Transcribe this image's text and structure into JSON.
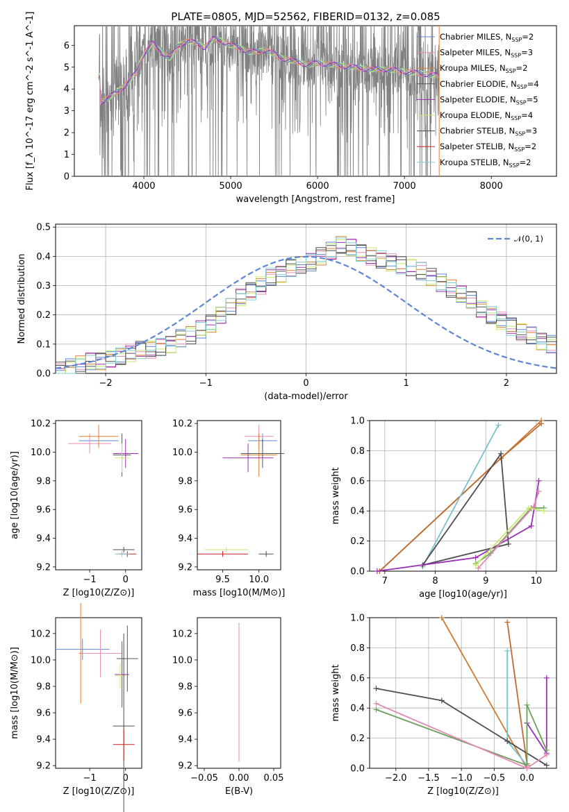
{
  "title": "PLATE=0805, MJD=52562, FIBERID=0132, z=0.085",
  "colors": [
    "#5b86d6",
    "#e88bb7",
    "#e07f2c",
    "#555555",
    "#9a2bb0",
    "#c7e86a",
    "#4d4d4d",
    "#cc2222",
    "#7ccfd3"
  ],
  "chart_data": [
    {
      "id": "spectrum",
      "type": "line",
      "xlabel": "wavelength [Angstrom, rest frame]",
      "ylabel": "Flux [f_λ 10^-17 erg cm^-2 s^-1 A^-1]",
      "xlim": [
        3200,
        8750
      ],
      "ylim": [
        0,
        6.9
      ],
      "xticks": [
        "4000",
        "5000",
        "6000",
        "7000",
        "8000"
      ],
      "yticks": [
        "0",
        "1",
        "2",
        "3",
        "4",
        "5",
        "6"
      ],
      "legend_location": "upper right",
      "legend": [
        {
          "name": "Chabrier MILES, N",
          "sub": "SSP",
          "suffix": "=2"
        },
        {
          "name": "Salpeter MILES, N",
          "sub": "SSP",
          "suffix": "=3"
        },
        {
          "name": "Kroupa MILES, N",
          "sub": "SSP",
          "suffix": "=2"
        },
        {
          "name": "Chabrier ELODIE, N",
          "sub": "SSP",
          "suffix": "=4"
        },
        {
          "name": "Salpeter ELODIE, N",
          "sub": "SSP",
          "suffix": "=5"
        },
        {
          "name": "Kroupa ELODIE, N",
          "sub": "SSP",
          "suffix": "=4"
        },
        {
          "name": "Chabrier STELIB, N",
          "sub": "SSP",
          "suffix": "=3"
        },
        {
          "name": "Salpeter STELIB, N",
          "sub": "SSP",
          "suffix": "=2"
        },
        {
          "name": "Kroupa STELIB, N",
          "sub": "SSP",
          "suffix": "=2"
        }
      ],
      "model_continuum": {
        "x": [
          3500,
          3600,
          3700,
          3800,
          3900,
          4000,
          4100,
          4200,
          4300,
          4400,
          4500,
          4600,
          4700,
          4800,
          4900,
          5000,
          5100,
          5200,
          5300,
          5400,
          5500,
          5600,
          5700,
          5800,
          5900,
          6000,
          6200,
          6400,
          6600,
          6800,
          7000,
          7200,
          7400
        ],
        "y": [
          3.4,
          3.6,
          3.9,
          4.2,
          4.7,
          5.6,
          6.1,
          5.7,
          5.4,
          6.0,
          6.2,
          6.1,
          5.9,
          6.3,
          6.2,
          6.0,
          5.9,
          5.7,
          5.7,
          5.8,
          5.6,
          5.4,
          5.3,
          5.2,
          5.1,
          5.2,
          5.1,
          5.0,
          4.9,
          4.9,
          4.8,
          4.7,
          4.6
        ]
      }
    },
    {
      "id": "residuals",
      "type": "histogram",
      "xlabel": "(data-model)/error",
      "ylabel": "Normed distribution",
      "xlim": [
        -2.5,
        2.5
      ],
      "ylim": [
        0,
        0.51
      ],
      "xticks": [
        "−2",
        "−1",
        "0",
        "1",
        "2"
      ],
      "yticks": [
        "0.0",
        "0.1",
        "0.2",
        "0.3",
        "0.4",
        "0.5"
      ],
      "reference_curve": "𝒩(0, 1)",
      "bin_width": 0.1,
      "values": [
        0.01,
        0.02,
        0.03,
        0.04,
        0.04,
        0.05,
        0.06,
        0.07,
        0.08,
        0.08,
        0.09,
        0.1,
        0.12,
        0.13,
        0.15,
        0.17,
        0.2,
        0.23,
        0.26,
        0.28,
        0.3,
        0.33,
        0.34,
        0.36,
        0.37,
        0.38,
        0.4,
        0.42,
        0.44,
        0.43,
        0.41,
        0.4,
        0.39,
        0.38,
        0.37,
        0.36,
        0.35,
        0.33,
        0.31,
        0.29,
        0.27,
        0.25,
        0.22,
        0.2,
        0.18,
        0.16,
        0.14,
        0.13,
        0.11,
        0.1
      ]
    },
    {
      "id": "age_vs_Z",
      "type": "errorbar",
      "xlabel": "Z [log10(Z/Z⊙)]",
      "ylabel": "age [log10(age/yr)]",
      "xlim": [
        -1.95,
        0.45
      ],
      "ylim": [
        9.18,
        10.22
      ],
      "xticks": [
        "−1",
        "0"
      ],
      "yticks": [
        "9.2",
        "9.4",
        "9.6",
        "9.8",
        "10.0",
        "10.2"
      ],
      "points": [
        {
          "x": -0.75,
          "y": 10.08,
          "xerr": 0.55,
          "yerr": 0.05
        },
        {
          "x": -1.0,
          "y": 10.06,
          "xerr": 0.6,
          "yerr": 0.07
        },
        {
          "x": -0.75,
          "y": 10.11,
          "xerr": 0.55,
          "yerr": 0.08
        },
        {
          "x": -0.1,
          "y": 9.98,
          "xerr": 0.25,
          "yerr": 0.15
        },
        {
          "x": 0.0,
          "y": 9.99,
          "xerr": 0.35,
          "yerr": 0.1
        },
        {
          "x": -0.1,
          "y": 9.96,
          "xerr": 0.2,
          "yerr": 0.1
        },
        {
          "x": -0.05,
          "y": 9.32,
          "xerr": 0.3,
          "yerr": 0.02
        },
        {
          "x": 0.05,
          "y": 9.29,
          "xerr": 0.25,
          "yerr": 0.02
        },
        {
          "x": -0.1,
          "y": 9.29,
          "xerr": 0.2,
          "yerr": 0.02
        }
      ]
    },
    {
      "id": "age_vs_mass",
      "type": "errorbar",
      "xlabel": "mass [log10(M/M⊙)]",
      "ylabel": "",
      "xlim": [
        9.15,
        10.3
      ],
      "ylim": [
        9.18,
        10.22
      ],
      "xticks": [
        "9.5",
        "10.0"
      ],
      "yticks": [
        "9.2",
        "9.4",
        "9.6",
        "9.8",
        "10.0",
        "10.2"
      ],
      "points": [
        {
          "x": 10.05,
          "y": 10.08,
          "xerr": 0.2,
          "yerr": 0.05
        },
        {
          "x": 10.0,
          "y": 10.11,
          "xerr": 0.2,
          "yerr": 0.08
        },
        {
          "x": 10.0,
          "y": 9.98,
          "xerr": 0.25,
          "yerr": 0.15
        },
        {
          "x": 10.05,
          "y": 9.99,
          "xerr": 0.3,
          "yerr": 0.1
        },
        {
          "x": 9.85,
          "y": 9.96,
          "xerr": 0.35,
          "yerr": 0.1
        },
        {
          "x": 9.55,
          "y": 9.32,
          "xerr": 0.3,
          "yerr": 0.02
        },
        {
          "x": 10.1,
          "y": 9.29,
          "xerr": 0.1,
          "yerr": 0.02
        },
        {
          "x": 9.5,
          "y": 9.29,
          "xerr": 0.35,
          "yerr": 0.02
        }
      ]
    },
    {
      "id": "weight_vs_age",
      "type": "line",
      "xlabel": "age [log10(age/yr)]",
      "ylabel": "mass weight",
      "xlim": [
        6.7,
        10.4
      ],
      "ylim": [
        0,
        1.0
      ],
      "xticks": [
        "7",
        "8",
        "9",
        "10"
      ],
      "yticks": [
        "0.0",
        "0.2",
        "0.4",
        "0.6",
        "0.8",
        "1.0"
      ],
      "series": [
        {
          "x": [
            6.9,
            10.1
          ],
          "y": [
            0.0,
            1.0
          ]
        },
        {
          "x": [
            6.9,
            9.3,
            10.1
          ],
          "y": [
            0.0,
            0.75,
            0.98
          ]
        },
        {
          "x": [
            7.75,
            9.25
          ],
          "y": [
            0.03,
            0.97
          ]
        },
        {
          "x": [
            7.75,
            9.3,
            9.45,
            7.75
          ],
          "y": [
            0.04,
            0.78,
            0.18,
            0.04
          ]
        },
        {
          "x": [
            6.85,
            8.8,
            9.9,
            10.05
          ],
          "y": [
            0.0,
            0.09,
            0.3,
            0.6
          ]
        },
        {
          "x": [
            8.8,
            9.1,
            9.9,
            10.15
          ],
          "y": [
            0.05,
            0.12,
            0.42,
            0.42
          ]
        },
        {
          "x": [
            8.85,
            9.95,
            10.05
          ],
          "y": [
            0.02,
            0.43,
            0.53
          ]
        },
        {
          "x": [
            8.8,
            9.85,
            10.15
          ],
          "y": [
            0.04,
            0.42,
            0.4
          ]
        }
      ]
    },
    {
      "id": "mass_vs_Z",
      "type": "errorbar",
      "xlabel": "Z [log10(Z/Z⊙)]",
      "ylabel": "mass [log10(M/M⊙)]",
      "xlim": [
        -1.95,
        0.45
      ],
      "ylim": [
        9.18,
        10.32
      ],
      "xticks": [
        "−1",
        "0"
      ],
      "yticks": [
        "9.2",
        "9.4",
        "9.6",
        "9.8",
        "10.0",
        "10.2"
      ],
      "points": [
        {
          "x": -1.2,
          "y": 10.08,
          "xerr": 0.75,
          "yerr": 0.08
        },
        {
          "x": -0.7,
          "y": 10.05,
          "xerr": 0.6,
          "yerr": 0.18
        },
        {
          "x": -1.25,
          "y": 10.05,
          "xerr": 0.05,
          "yerr": 0.38
        },
        {
          "x": 0.05,
          "y": 10.01,
          "xerr": 0.3,
          "yerr": 0.25
        },
        {
          "x": -0.1,
          "y": 9.89,
          "xerr": 0.2,
          "yerr": 0.25
        },
        {
          "x": -0.15,
          "y": 9.88,
          "xerr": 0.15,
          "yerr": 0.1
        },
        {
          "x": -0.05,
          "y": 9.5,
          "xerr": 0.3,
          "yerr": 0.7
        },
        {
          "x": -0.05,
          "y": 9.36,
          "xerr": 0.3,
          "yerr": 0.12
        }
      ]
    },
    {
      "id": "mass_vs_EBV",
      "type": "errorbar",
      "xlabel": "E(B-V)",
      "ylabel": "",
      "xlim": [
        -0.06,
        0.06
      ],
      "ylim": [
        9.18,
        10.32
      ],
      "xticks": [
        "−0.05",
        "0.00",
        "0.05"
      ],
      "yticks": [
        "9.2",
        "9.4",
        "9.6",
        "9.8",
        "10.0",
        "10.2"
      ],
      "points": [
        {
          "x": 0.0,
          "y": 10.2,
          "xerr": 0.0,
          "yerr": 0.08
        },
        {
          "x": 0.0,
          "y": 9.75,
          "xerr": 0.0,
          "yerr": 0.52
        }
      ]
    },
    {
      "id": "weight_vs_Z",
      "type": "line",
      "xlabel": "Z [log10(Z/Z⊙)]",
      "ylabel": "mass weight",
      "xlim": [
        -2.4,
        0.45
      ],
      "ylim": [
        0,
        1.0
      ],
      "xticks": [
        "−2.0",
        "−1.5",
        "−1.0",
        "−0.5",
        "0.0"
      ],
      "yticks": [
        "0.0",
        "0.2",
        "0.4",
        "0.6",
        "0.8",
        "1.0"
      ],
      "series": [
        {
          "x": [
            -1.3,
            0.0
          ],
          "y": [
            1.0,
            0.0
          ]
        },
        {
          "x": [
            -0.3,
            0.0
          ],
          "y": [
            0.97,
            0.03
          ]
        },
        {
          "x": [
            -0.3,
            -0.3,
            0.0
          ],
          "y": [
            0.78,
            0.18,
            0.02
          ]
        },
        {
          "x": [
            -2.3,
            -1.3,
            -0.3,
            0.3
          ],
          "y": [
            0.53,
            0.45,
            0.18,
            0.02
          ]
        },
        {
          "x": [
            0.0,
            0.3,
            0.3
          ],
          "y": [
            0.3,
            0.1,
            0.6
          ]
        },
        {
          "x": [
            -2.3,
            0.0,
            0.0,
            0.3
          ],
          "y": [
            0.39,
            0.02,
            0.42,
            0.12
          ]
        },
        {
          "x": [
            -2.3,
            0.0,
            0.3
          ],
          "y": [
            0.43,
            0.0,
            0.09
          ]
        }
      ]
    }
  ]
}
